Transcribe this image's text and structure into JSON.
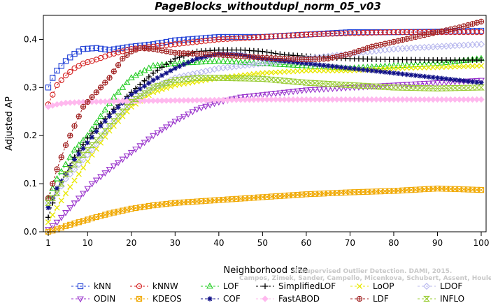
{
  "chart_data": {
    "type": "line",
    "title": "PageBlocks_withoutdupl_norm_05_v03",
    "xlabel": "Neighborhood size",
    "ylabel": "Adjusted AP",
    "xlim": [
      1,
      100
    ],
    "ylim": [
      0,
      0.45
    ],
    "xticks": [
      1,
      10,
      20,
      30,
      40,
      50,
      60,
      70,
      80,
      90,
      100
    ],
    "yticks": [
      0.0,
      0.1,
      0.2,
      0.3,
      0.4
    ],
    "ytick_labels": [
      "0.0",
      "0.1",
      "0.2",
      "0.3",
      "0.4"
    ],
    "grid": false,
    "legend_position": "bottom",
    "watermark": [
      "Unsupervised Outlier Detection. DAMI, 2015.",
      "Campos, Zimek, Sander, Campello, Micenkova, Schubert, Assent, Houle"
    ],
    "series": [
      {
        "name": "kNN",
        "color": "#1f3fd6",
        "marker": "square",
        "points": [
          [
            1,
            0.3
          ],
          [
            2,
            0.32
          ],
          [
            3,
            0.335
          ],
          [
            5,
            0.355
          ],
          [
            7,
            0.37
          ],
          [
            9,
            0.38
          ],
          [
            12,
            0.382
          ],
          [
            15,
            0.378
          ],
          [
            20,
            0.385
          ],
          [
            25,
            0.39
          ],
          [
            30,
            0.398
          ],
          [
            40,
            0.405
          ],
          [
            50,
            0.405
          ],
          [
            60,
            0.41
          ],
          [
            70,
            0.415
          ],
          [
            80,
            0.415
          ],
          [
            90,
            0.416
          ],
          [
            100,
            0.418
          ]
        ]
      },
      {
        "name": "kNNW",
        "color": "#d42222",
        "marker": "circle",
        "points": [
          [
            1,
            0.265
          ],
          [
            2,
            0.285
          ],
          [
            3,
            0.305
          ],
          [
            5,
            0.325
          ],
          [
            7,
            0.34
          ],
          [
            9,
            0.35
          ],
          [
            12,
            0.358
          ],
          [
            15,
            0.368
          ],
          [
            20,
            0.38
          ],
          [
            25,
            0.385
          ],
          [
            30,
            0.39
          ],
          [
            40,
            0.4
          ],
          [
            50,
            0.405
          ],
          [
            60,
            0.41
          ],
          [
            70,
            0.413
          ],
          [
            80,
            0.415
          ],
          [
            90,
            0.415
          ],
          [
            100,
            0.415
          ]
        ]
      },
      {
        "name": "LOF",
        "color": "#22cc22",
        "marker": "triangle-up",
        "points": [
          [
            1,
            0.07
          ],
          [
            2,
            0.09
          ],
          [
            3,
            0.11
          ],
          [
            5,
            0.14
          ],
          [
            7,
            0.17
          ],
          [
            10,
            0.2
          ],
          [
            13,
            0.24
          ],
          [
            16,
            0.28
          ],
          [
            20,
            0.32
          ],
          [
            25,
            0.345
          ],
          [
            30,
            0.35
          ],
          [
            40,
            0.355
          ],
          [
            50,
            0.35
          ],
          [
            60,
            0.345
          ],
          [
            70,
            0.34
          ],
          [
            80,
            0.345
          ],
          [
            90,
            0.35
          ],
          [
            100,
            0.36
          ]
        ]
      },
      {
        "name": "SimplifiedLOF",
        "color": "#000000",
        "marker": "plus",
        "points": [
          [
            1,
            0.03
          ],
          [
            2,
            0.06
          ],
          [
            3,
            0.09
          ],
          [
            5,
            0.12
          ],
          [
            7,
            0.155
          ],
          [
            10,
            0.195
          ],
          [
            13,
            0.225
          ],
          [
            16,
            0.255
          ],
          [
            20,
            0.29
          ],
          [
            25,
            0.33
          ],
          [
            30,
            0.36
          ],
          [
            35,
            0.375
          ],
          [
            40,
            0.378
          ],
          [
            45,
            0.378
          ],
          [
            50,
            0.375
          ],
          [
            55,
            0.368
          ],
          [
            60,
            0.365
          ],
          [
            70,
            0.36
          ],
          [
            80,
            0.358
          ],
          [
            90,
            0.357
          ],
          [
            100,
            0.357
          ]
        ]
      },
      {
        "name": "LoOP",
        "color": "#e8e800",
        "marker": "x",
        "points": [
          [
            1,
            0.02
          ],
          [
            3,
            0.05
          ],
          [
            5,
            0.08
          ],
          [
            8,
            0.12
          ],
          [
            11,
            0.16
          ],
          [
            15,
            0.21
          ],
          [
            20,
            0.26
          ],
          [
            25,
            0.29
          ],
          [
            30,
            0.305
          ],
          [
            40,
            0.32
          ],
          [
            50,
            0.33
          ],
          [
            60,
            0.335
          ],
          [
            70,
            0.335
          ],
          [
            80,
            0.34
          ],
          [
            90,
            0.342
          ],
          [
            100,
            0.345
          ]
        ]
      },
      {
        "name": "LDOF",
        "color": "#b8b8ee",
        "marker": "diamond",
        "points": [
          [
            1,
            0.06
          ],
          [
            3,
            0.08
          ],
          [
            5,
            0.11
          ],
          [
            8,
            0.14
          ],
          [
            11,
            0.17
          ],
          [
            15,
            0.22
          ],
          [
            20,
            0.27
          ],
          [
            25,
            0.3
          ],
          [
            30,
            0.32
          ],
          [
            40,
            0.34
          ],
          [
            50,
            0.35
          ],
          [
            60,
            0.36
          ],
          [
            70,
            0.37
          ],
          [
            80,
            0.38
          ],
          [
            90,
            0.385
          ],
          [
            100,
            0.39
          ]
        ]
      },
      {
        "name": "ODIN",
        "color": "#9933cc",
        "marker": "triangle-down",
        "points": [
          [
            1,
            0.005
          ],
          [
            3,
            0.02
          ],
          [
            5,
            0.04
          ],
          [
            8,
            0.07
          ],
          [
            11,
            0.1
          ],
          [
            15,
            0.13
          ],
          [
            20,
            0.165
          ],
          [
            25,
            0.2
          ],
          [
            30,
            0.23
          ],
          [
            35,
            0.255
          ],
          [
            40,
            0.27
          ],
          [
            45,
            0.28
          ],
          [
            50,
            0.285
          ],
          [
            55,
            0.29
          ],
          [
            60,
            0.295
          ],
          [
            70,
            0.3
          ],
          [
            80,
            0.305
          ],
          [
            90,
            0.31
          ],
          [
            100,
            0.315
          ]
        ]
      },
      {
        "name": "KDEOS",
        "color": "#f0a800",
        "marker": "square-x",
        "points": [
          [
            1,
            0.0
          ],
          [
            3,
            0.005
          ],
          [
            5,
            0.012
          ],
          [
            8,
            0.02
          ],
          [
            11,
            0.028
          ],
          [
            15,
            0.038
          ],
          [
            20,
            0.048
          ],
          [
            25,
            0.055
          ],
          [
            30,
            0.06
          ],
          [
            40,
            0.066
          ],
          [
            50,
            0.072
          ],
          [
            60,
            0.078
          ],
          [
            70,
            0.082
          ],
          [
            80,
            0.085
          ],
          [
            90,
            0.09
          ],
          [
            100,
            0.087
          ]
        ]
      },
      {
        "name": "COF",
        "color": "#111188",
        "marker": "asterisk",
        "points": [
          [
            1,
            0.05
          ],
          [
            2,
            0.07
          ],
          [
            3,
            0.09
          ],
          [
            5,
            0.12
          ],
          [
            7,
            0.15
          ],
          [
            10,
            0.185
          ],
          [
            13,
            0.22
          ],
          [
            16,
            0.25
          ],
          [
            20,
            0.285
          ],
          [
            25,
            0.315
          ],
          [
            30,
            0.34
          ],
          [
            35,
            0.36
          ],
          [
            40,
            0.37
          ],
          [
            45,
            0.368
          ],
          [
            50,
            0.36
          ],
          [
            55,
            0.355
          ],
          [
            60,
            0.35
          ],
          [
            70,
            0.34
          ],
          [
            80,
            0.33
          ],
          [
            90,
            0.32
          ],
          [
            100,
            0.31
          ]
        ]
      },
      {
        "name": "FastABOD",
        "color": "#ffb8ee",
        "marker": "diamond-filled",
        "points": [
          [
            1,
            0.26
          ],
          [
            3,
            0.265
          ],
          [
            5,
            0.268
          ],
          [
            10,
            0.27
          ],
          [
            20,
            0.272
          ],
          [
            30,
            0.273
          ],
          [
            40,
            0.274
          ],
          [
            50,
            0.275
          ],
          [
            60,
            0.275
          ],
          [
            70,
            0.275
          ],
          [
            80,
            0.275
          ],
          [
            90,
            0.275
          ],
          [
            100,
            0.275
          ]
        ]
      },
      {
        "name": "LDF",
        "color": "#a02020",
        "marker": "circle-plus",
        "points": [
          [
            1,
            0.07
          ],
          [
            2,
            0.1
          ],
          [
            3,
            0.13
          ],
          [
            5,
            0.18
          ],
          [
            7,
            0.22
          ],
          [
            9,
            0.26
          ],
          [
            12,
            0.29
          ],
          [
            15,
            0.32
          ],
          [
            18,
            0.36
          ],
          [
            20,
            0.375
          ],
          [
            22,
            0.382
          ],
          [
            25,
            0.38
          ],
          [
            30,
            0.372
          ],
          [
            40,
            0.368
          ],
          [
            50,
            0.362
          ],
          [
            60,
            0.358
          ],
          [
            65,
            0.36
          ],
          [
            70,
            0.37
          ],
          [
            75,
            0.385
          ],
          [
            80,
            0.395
          ],
          [
            85,
            0.405
          ],
          [
            90,
            0.415
          ],
          [
            95,
            0.425
          ],
          [
            100,
            0.437
          ]
        ]
      },
      {
        "name": "INFLO",
        "color": "#99cc33",
        "marker": "hourglass",
        "points": [
          [
            1,
            0.06
          ],
          [
            3,
            0.08
          ],
          [
            5,
            0.12
          ],
          [
            8,
            0.15
          ],
          [
            11,
            0.18
          ],
          [
            15,
            0.22
          ],
          [
            20,
            0.27
          ],
          [
            25,
            0.3
          ],
          [
            30,
            0.315
          ],
          [
            35,
            0.32
          ],
          [
            40,
            0.32
          ],
          [
            50,
            0.318
          ],
          [
            60,
            0.31
          ],
          [
            70,
            0.305
          ],
          [
            80,
            0.3
          ],
          [
            90,
            0.298
          ],
          [
            100,
            0.3
          ]
        ]
      }
    ]
  }
}
